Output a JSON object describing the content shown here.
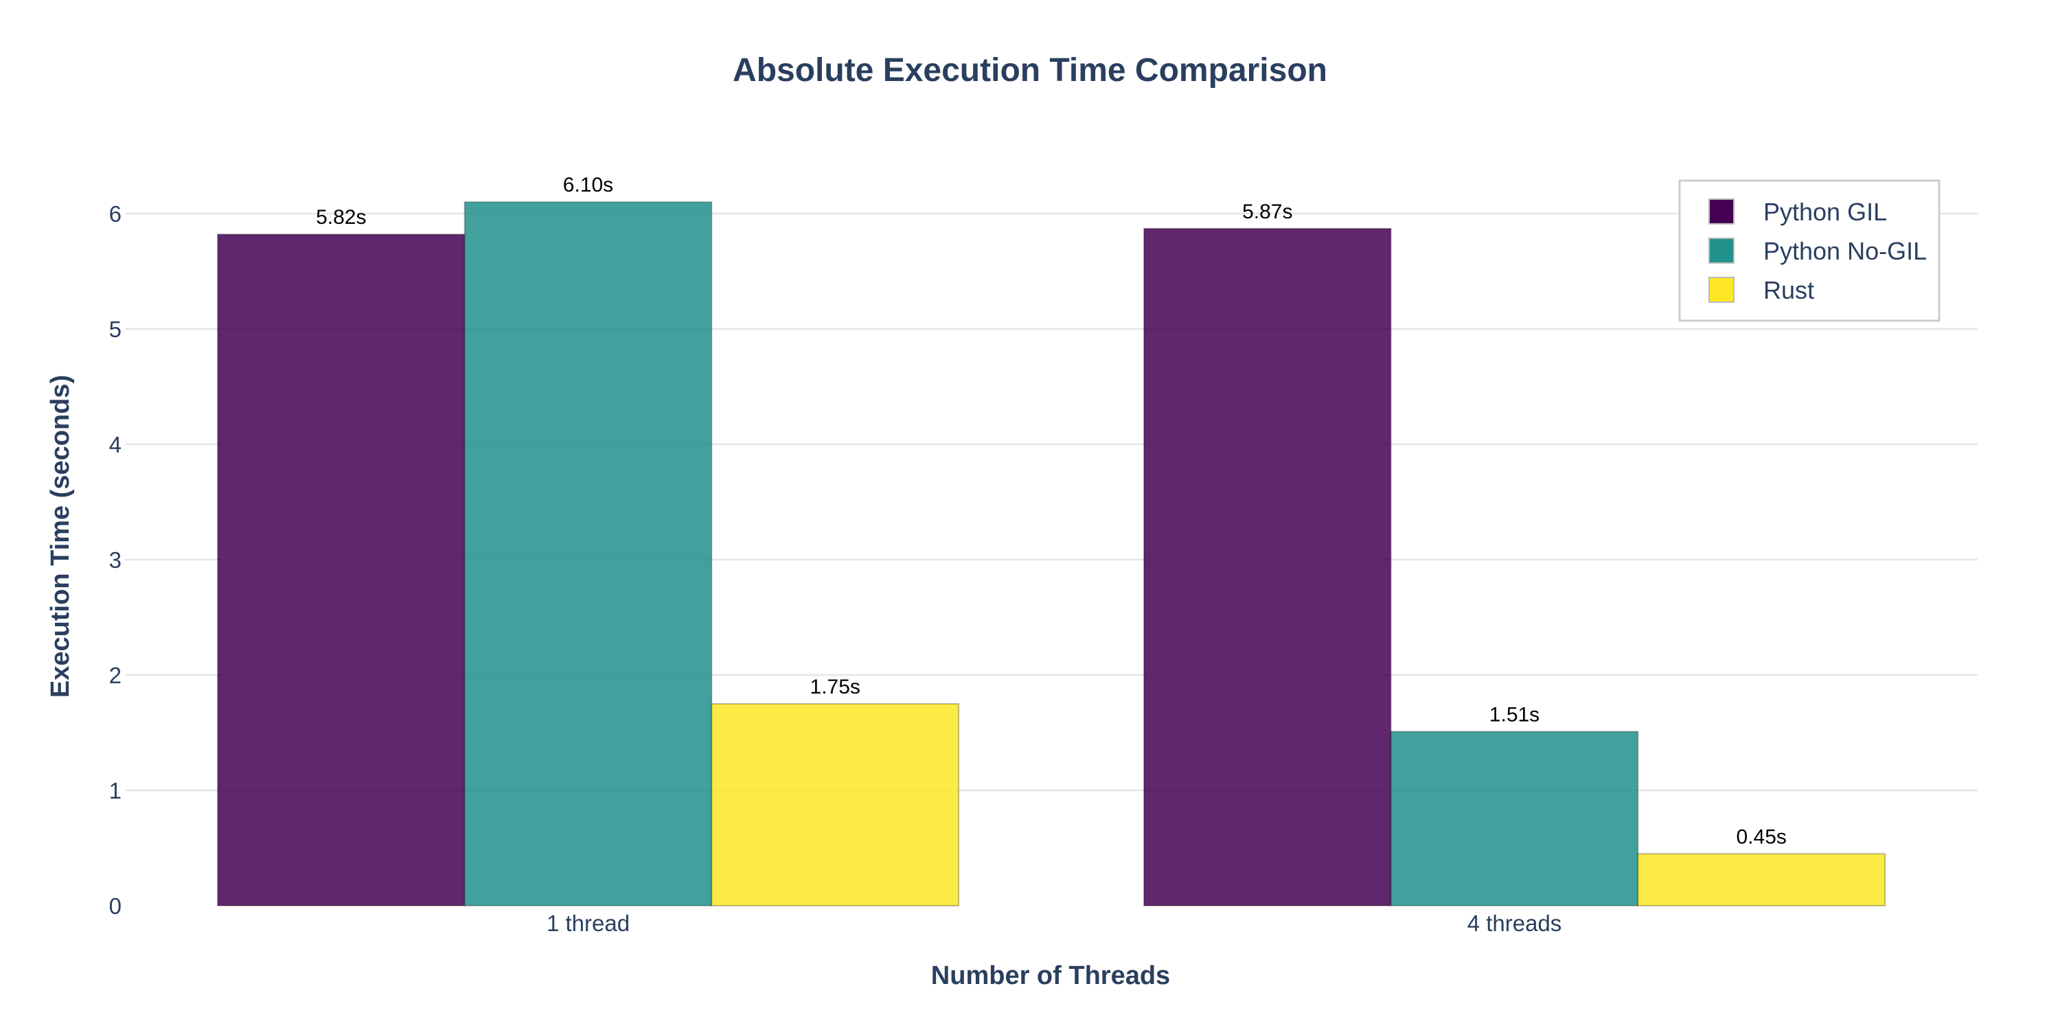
{
  "chart_data": {
    "type": "bar",
    "title": "Absolute Execution Time Comparison",
    "xlabel": "Number of Threads",
    "ylabel": "Execution Time (seconds)",
    "categories": [
      "1 thread",
      "4 threads"
    ],
    "series": [
      {
        "name": "Python GIL",
        "values": [
          5.82,
          5.87
        ],
        "labels": [
          "5.82s",
          "5.87s"
        ],
        "color": "#440154"
      },
      {
        "name": "Python No-GIL",
        "values": [
          6.1,
          1.51
        ],
        "labels": [
          "6.10s",
          "1.51s"
        ],
        "color": "#21918c"
      },
      {
        "name": "Rust",
        "values": [
          1.75,
          0.45
        ],
        "labels": [
          "1.75s",
          "0.45s"
        ],
        "color": "#fde725"
      }
    ],
    "ylim": [
      0,
      6.4
    ],
    "yticks": [
      "0",
      "1",
      "2",
      "3",
      "4",
      "5",
      "6"
    ],
    "grid": true,
    "legend_position": "top-right",
    "bar_opacity": 0.85
  }
}
